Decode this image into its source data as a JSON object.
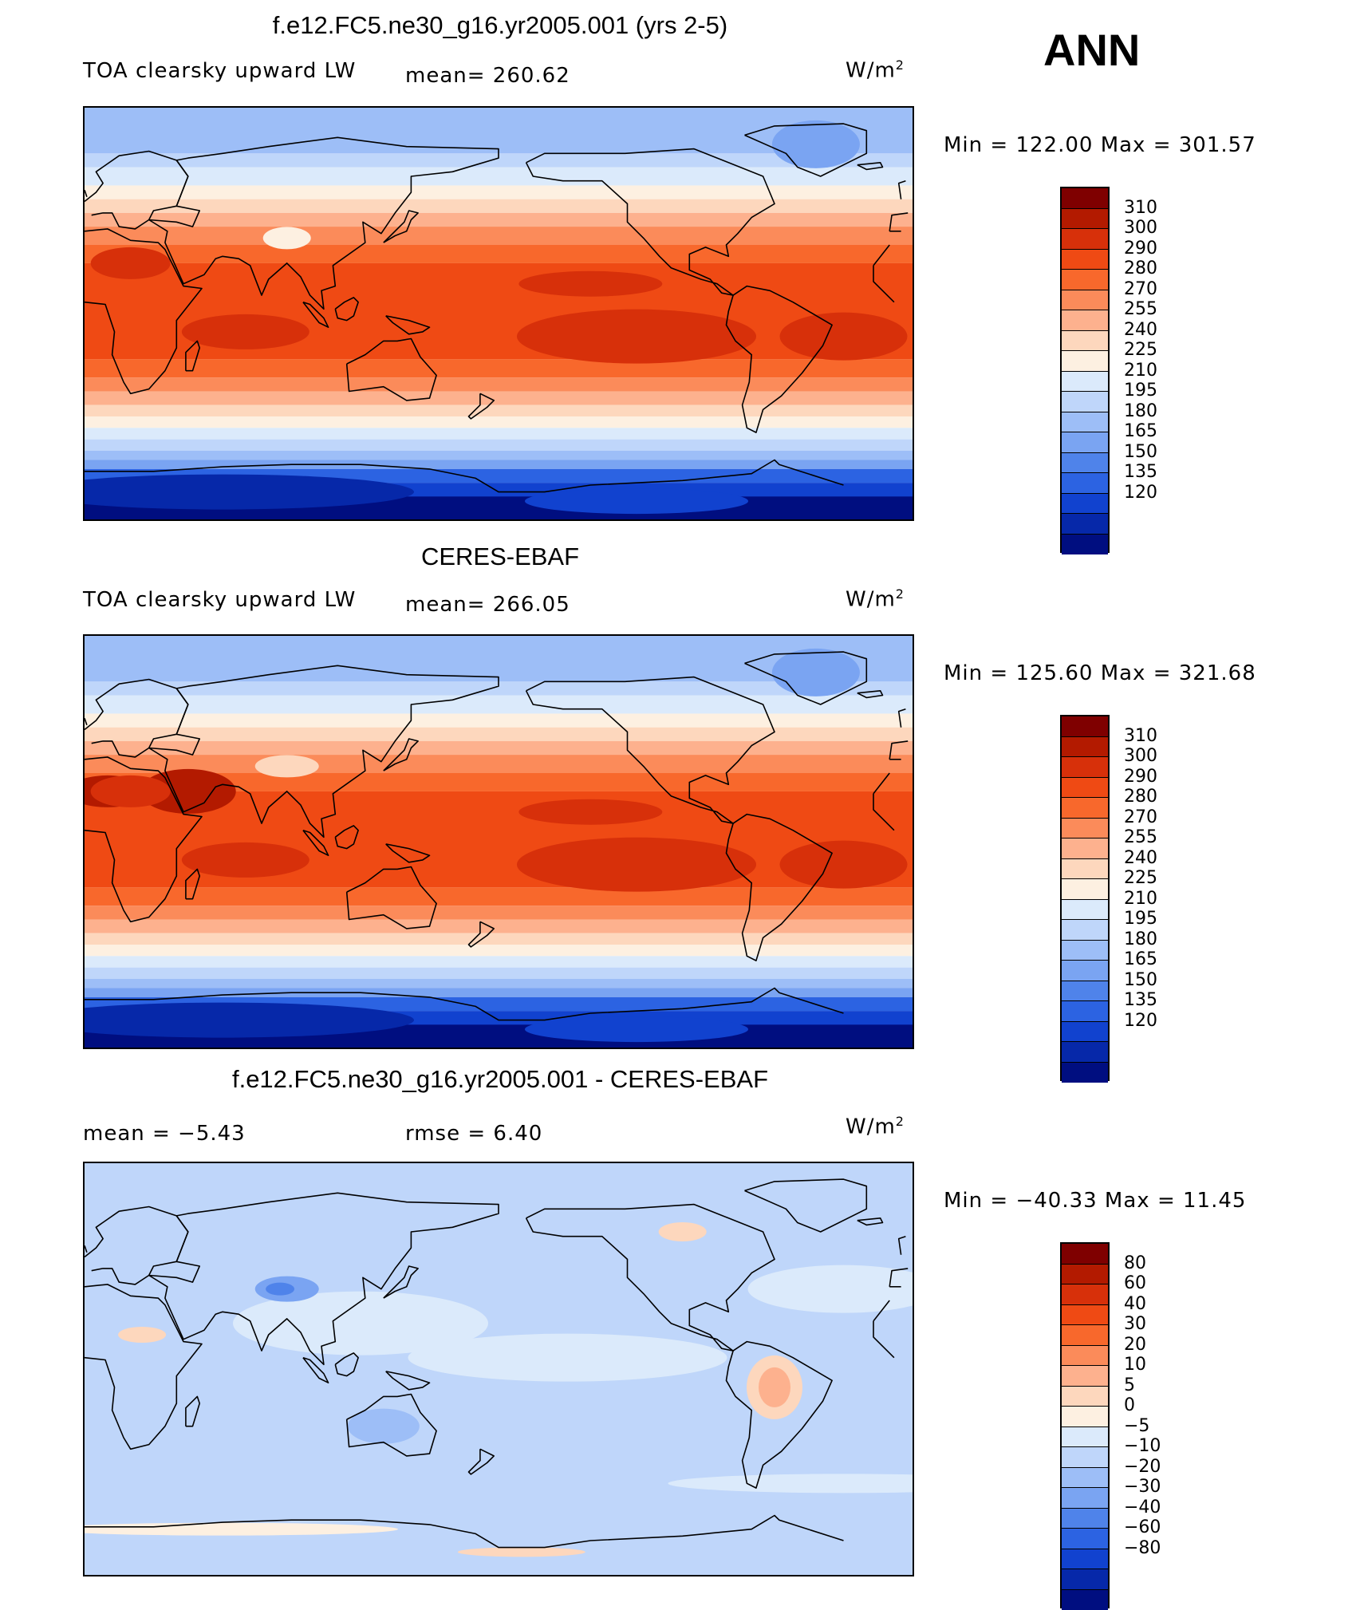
{
  "season": "ANN",
  "panels": [
    {
      "title": "f.e12.FC5.ne30_g16.yr2005.001 (yrs 2-5)",
      "left_label": "TOA clearsky upward LW",
      "mid_label": "mean= 260.62",
      "units": "W/m",
      "units_sup": "2",
      "minmax": "Min  =  122.00  Max  =  301.57",
      "scale": "abs",
      "variant": "model"
    },
    {
      "title": "CERES-EBAF",
      "left_label": "TOA clearsky upward LW",
      "mid_label": "mean= 266.05",
      "units": "W/m",
      "units_sup": "2",
      "minmax": "Min  =  125.60  Max  =  321.68",
      "scale": "abs",
      "variant": "obs"
    },
    {
      "title": "f.e12.FC5.ne30_g16.yr2005.001 - CERES-EBAF",
      "left_label": "mean  =    −5.43",
      "mid_label": "rmse  =     6.40",
      "units": "W/m",
      "units_sup": "2",
      "minmax": "Min  =  −40.33  Max  =    11.45",
      "scale": "diff",
      "variant": "diff"
    }
  ],
  "colorbars": {
    "abs": {
      "labels": [
        "310",
        "300",
        "290",
        "280",
        "270",
        "255",
        "240",
        "225",
        "210",
        "195",
        "180",
        "165",
        "150",
        "135",
        "120"
      ],
      "colors": [
        "#7f0000",
        "#b31a00",
        "#d7300a",
        "#ef4a14",
        "#f8682c",
        "#fb8b5a",
        "#fdb18e",
        "#fdd7bd",
        "#fdf0e1",
        "#dbeafb",
        "#bfd6fa",
        "#9dbef7",
        "#7aa4f2",
        "#4f83ea",
        "#2c63e2",
        "#1142cf",
        "#0628a9",
        "#000e80"
      ]
    },
    "diff": {
      "labels": [
        "80",
        "60",
        "40",
        "30",
        "20",
        "10",
        "5",
        "0",
        "−5",
        "−10",
        "−20",
        "−30",
        "−40",
        "−60",
        "−80"
      ],
      "colors": [
        "#7f0000",
        "#b31a00",
        "#d7300a",
        "#ef4a14",
        "#f8682c",
        "#fb8b5a",
        "#fdb18e",
        "#fdd7bd",
        "#fdf0e1",
        "#dbeafb",
        "#bfd6fa",
        "#9dbef7",
        "#7aa4f2",
        "#4f83ea",
        "#2c63e2",
        "#1142cf",
        "#0628a9",
        "#000e80"
      ]
    }
  },
  "chart_data": [
    {
      "type": "heatmap",
      "title": "f.e12.FC5.ne30_g16.yr2005.001 (yrs 2-5)",
      "field": "TOA clearsky upward LW",
      "units": "W/m2",
      "mean": 260.62,
      "min": 122.0,
      "max": 301.57,
      "levels": [
        120,
        135,
        150,
        165,
        180,
        195,
        210,
        225,
        240,
        255,
        270,
        280,
        290,
        300,
        310
      ]
    },
    {
      "type": "heatmap",
      "title": "CERES-EBAF",
      "field": "TOA clearsky upward LW",
      "units": "W/m2",
      "mean": 266.05,
      "min": 125.6,
      "max": 321.68,
      "levels": [
        120,
        135,
        150,
        165,
        180,
        195,
        210,
        225,
        240,
        255,
        270,
        280,
        290,
        300,
        310
      ]
    },
    {
      "type": "heatmap",
      "title": "f.e12.FC5.ne30_g16.yr2005.001 - CERES-EBAF",
      "units": "W/m2",
      "mean": -5.43,
      "rmse": 6.4,
      "min": -40.33,
      "max": 11.45,
      "levels": [
        -80,
        -60,
        -40,
        -30,
        -20,
        -10,
        -5,
        0,
        5,
        10,
        20,
        30,
        40,
        60,
        80
      ]
    }
  ]
}
